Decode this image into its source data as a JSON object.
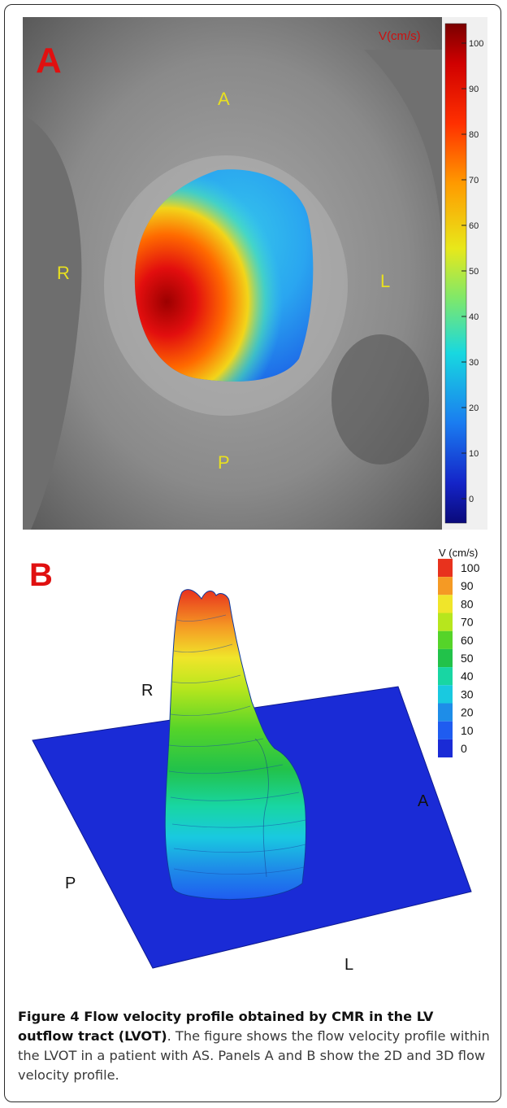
{
  "panel_a": {
    "panel_label": "A",
    "colorbar_title": "V(cm/s)",
    "colorbar_ticks": [
      "100",
      "90",
      "80",
      "70",
      "60",
      "50",
      "40",
      "30",
      "20",
      "10",
      "0"
    ],
    "orientation": {
      "top": "A",
      "bottom": "P",
      "left": "R",
      "right": "L"
    }
  },
  "panel_b": {
    "panel_label": "B",
    "colorbar_title": "V (cm/s)",
    "colorbar_ticks": [
      "100",
      "90",
      "80",
      "70",
      "60",
      "50",
      "40",
      "30",
      "20",
      "10",
      "0"
    ],
    "orientation": {
      "r": "R",
      "a": "A",
      "p": "P",
      "l": "L"
    },
    "colors": [
      "#1a2bd6",
      "#1f5cf0",
      "#1e8de8",
      "#19c9e0",
      "#18d6a3",
      "#22c24a",
      "#55d429",
      "#b7e61d",
      "#f0e52a",
      "#f59a24",
      "#e8321d"
    ]
  },
  "caption": {
    "title": "Figure 4 Flow velocity profile obtained by CMR in the LV outflow tract (LVOT)",
    "body": ". The figure shows the flow velocity profile within the LVOT in a patient with AS. Panels A and B show the 2D and 3D flow velocity profile."
  }
}
